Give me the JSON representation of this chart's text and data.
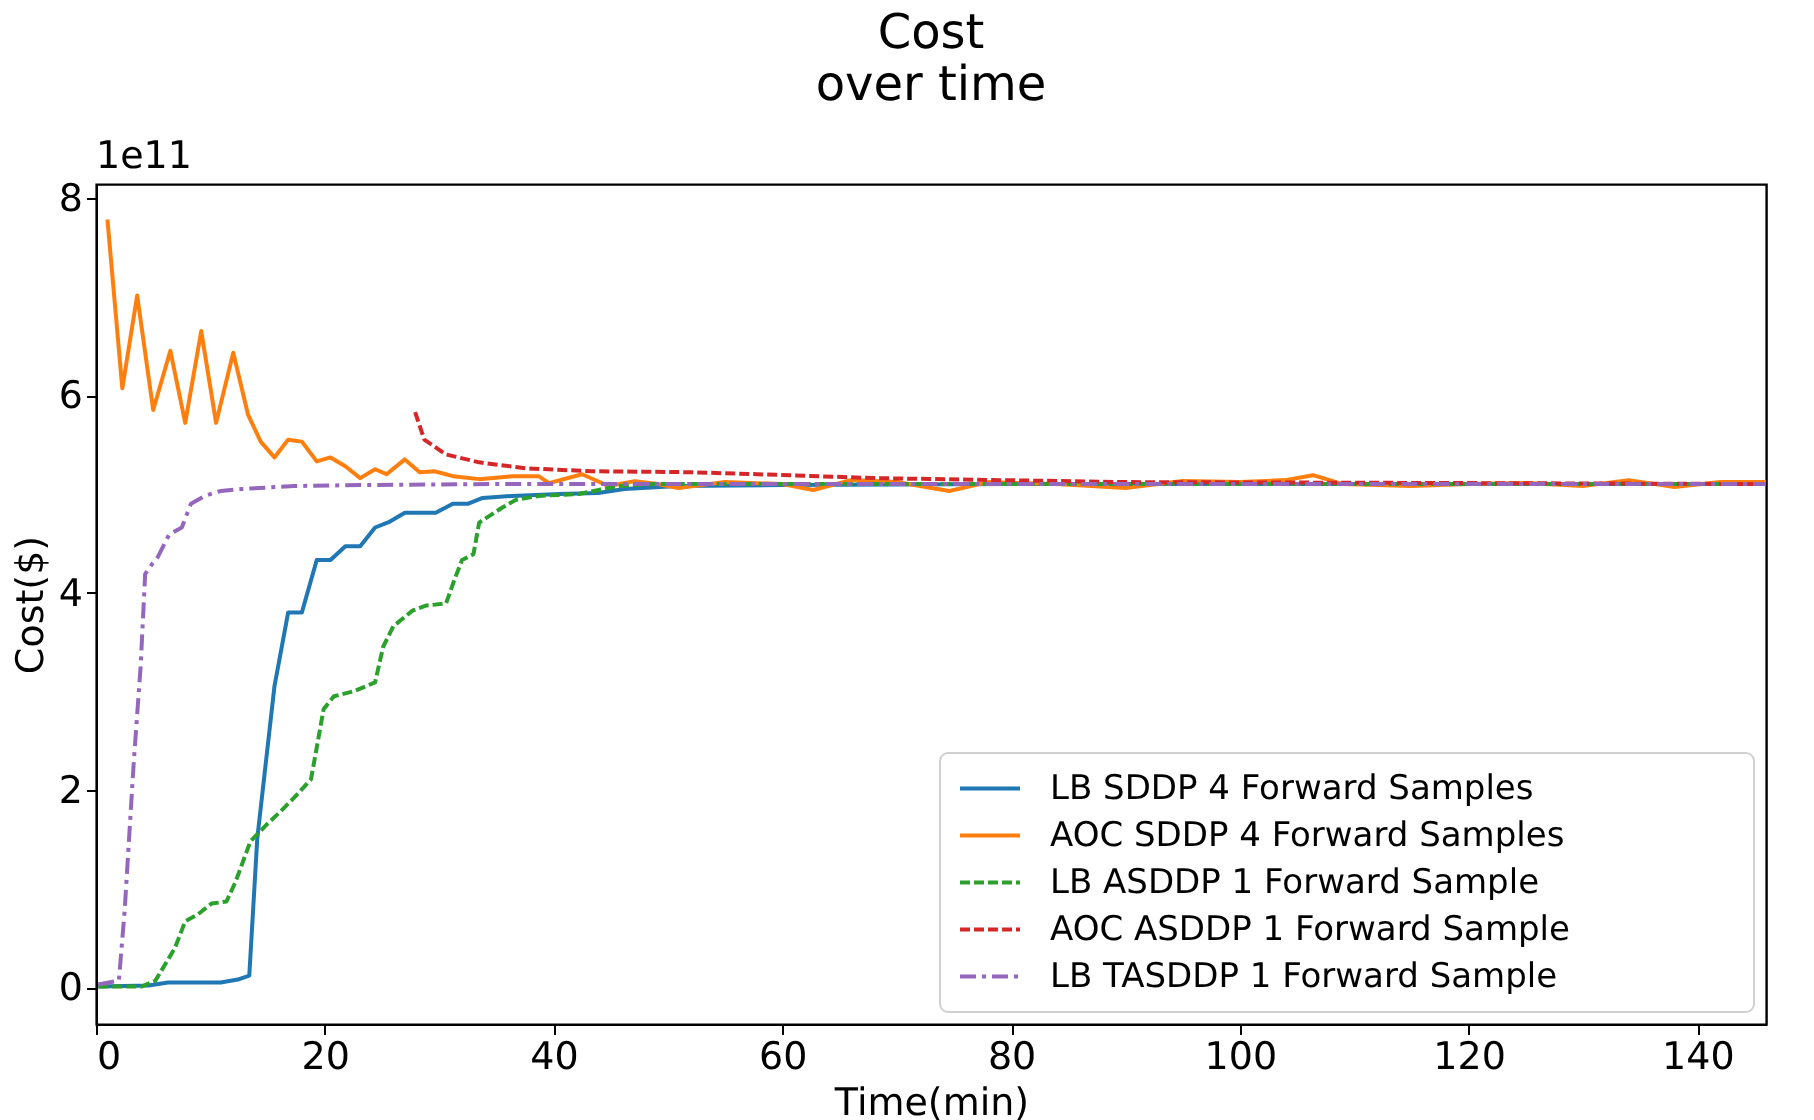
{
  "chart_data": {
    "type": "line",
    "title": "Cost\nover time",
    "xlabel": "Time(min)",
    "ylabel": "Cost($)",
    "annotations": [
      "1e11"
    ],
    "xlim": [
      0,
      146
    ],
    "ylim": [
      -0.37,
      8.14
    ],
    "xticks": [
      0,
      20,
      40,
      60,
      80,
      100,
      120,
      140
    ],
    "yticks": [
      0,
      2,
      4,
      6,
      8
    ],
    "grid": false,
    "legend": "bottom right",
    "marker": "none",
    "series": [
      {
        "name": "LB SDDP 4 Forward Samples",
        "color": "#1f77b4",
        "line_style": "solid",
        "x": [
          0.2,
          4.6,
          6.3,
          10.9,
          12.4,
          13.4,
          14.1,
          15.6,
          16.8,
          18.0,
          19.3,
          20.5,
          21.8,
          23.1,
          24.4,
          25.7,
          27.0,
          28.3,
          29.7,
          31.2,
          32.5,
          33.8,
          36.4,
          40.5,
          43.9,
          46.2,
          50.9,
          60,
          80,
          100,
          120,
          146
        ],
        "values": [
          0.01,
          0.02,
          0.05,
          0.05,
          0.08,
          0.12,
          1.51,
          3.05,
          3.8,
          3.8,
          4.33,
          4.33,
          4.47,
          4.47,
          4.66,
          4.72,
          4.81,
          4.81,
          4.81,
          4.9,
          4.9,
          4.96,
          4.98,
          5.0,
          5.01,
          5.05,
          5.08,
          5.09,
          5.1,
          5.1,
          5.1,
          5.1
        ]
      },
      {
        "name": "AOC SDDP 4 Forward Samples",
        "color": "#ff7f0e",
        "line_style": "solid",
        "x": [
          1.0,
          2.3,
          3.6,
          5.0,
          6.5,
          7.8,
          9.2,
          10.5,
          12.0,
          13.3,
          14.4,
          15.6,
          16.8,
          18.0,
          19.3,
          20.5,
          21.8,
          23.1,
          24.4,
          25.4,
          27.0,
          28.3,
          29.6,
          31.2,
          33.5,
          36.4,
          38.7,
          39.6,
          42.5,
          44.8,
          47.1,
          49.1,
          50.9,
          55,
          60,
          62.7,
          66,
          70,
          74.6,
          78,
          84,
          90,
          95,
          100,
          104,
          106.4,
          109,
          115,
          120,
          125,
          130,
          134,
          138,
          142,
          146
        ],
        "values": [
          7.78,
          6.07,
          7.01,
          5.85,
          6.45,
          5.72,
          6.65,
          5.72,
          6.43,
          5.8,
          5.53,
          5.37,
          5.55,
          5.53,
          5.33,
          5.37,
          5.28,
          5.16,
          5.25,
          5.2,
          5.35,
          5.22,
          5.23,
          5.18,
          5.15,
          5.18,
          5.18,
          5.11,
          5.2,
          5.08,
          5.13,
          5.1,
          5.06,
          5.12,
          5.1,
          5.04,
          5.14,
          5.12,
          5.03,
          5.12,
          5.1,
          5.06,
          5.13,
          5.12,
          5.14,
          5.19,
          5.1,
          5.08,
          5.1,
          5.11,
          5.08,
          5.14,
          5.07,
          5.12,
          5.12
        ]
      },
      {
        "name": "LB ASDDP 1 Forward Sample",
        "color": "#2ca02c",
        "line_style": "dashed",
        "x": [
          0.2,
          4.0,
          5.2,
          6.9,
          7.8,
          8.9,
          10.1,
          11.4,
          12.2,
          13.5,
          15.0,
          16.1,
          17.3,
          18.8,
          19.9,
          20.8,
          22.5,
          24.4,
          25.1,
          26.0,
          27.7,
          28.9,
          30.6,
          31.3,
          32.0,
          33.0,
          33.5,
          34.7,
          35.5,
          36.7,
          38.7,
          42.2,
          45.7,
          49.1,
          70,
          100,
          146
        ],
        "values": [
          0.01,
          0.01,
          0.07,
          0.4,
          0.67,
          0.74,
          0.85,
          0.87,
          1.07,
          1.48,
          1.66,
          1.78,
          1.92,
          2.11,
          2.82,
          2.95,
          3.0,
          3.09,
          3.45,
          3.66,
          3.82,
          3.87,
          3.89,
          4.12,
          4.33,
          4.39,
          4.71,
          4.8,
          4.86,
          4.94,
          4.98,
          5.0,
          5.08,
          5.1,
          5.1,
          5.1,
          5.1
        ]
      },
      {
        "name": "AOC ASDDP 1 Forward Sample",
        "color": "#d62728",
        "line_style": "dashed",
        "x": [
          27.9,
          28.7,
          30.6,
          33.5,
          37.6,
          43.3,
          52.0,
          57.8,
          68.2,
          90,
          120,
          146
        ],
        "values": [
          5.83,
          5.55,
          5.4,
          5.32,
          5.26,
          5.23,
          5.22,
          5.2,
          5.16,
          5.12,
          5.11,
          5.1
        ]
      },
      {
        "name": "LB TASDDP 1 Forward Sample",
        "color": "#9467bd",
        "line_style": "dashdot",
        "x": [
          0.2,
          2.0,
          2.5,
          3.3,
          3.9,
          4.3,
          4.9,
          5.4,
          6.4,
          7.5,
          8.3,
          9.5,
          10.9,
          12.7,
          17.3,
          23.1,
          34.7,
          146
        ],
        "values": [
          0.03,
          0.07,
          0.77,
          2.28,
          3.25,
          4.19,
          4.29,
          4.36,
          4.59,
          4.66,
          4.9,
          4.98,
          5.03,
          5.05,
          5.08,
          5.09,
          5.1,
          5.1
        ]
      }
    ]
  }
}
